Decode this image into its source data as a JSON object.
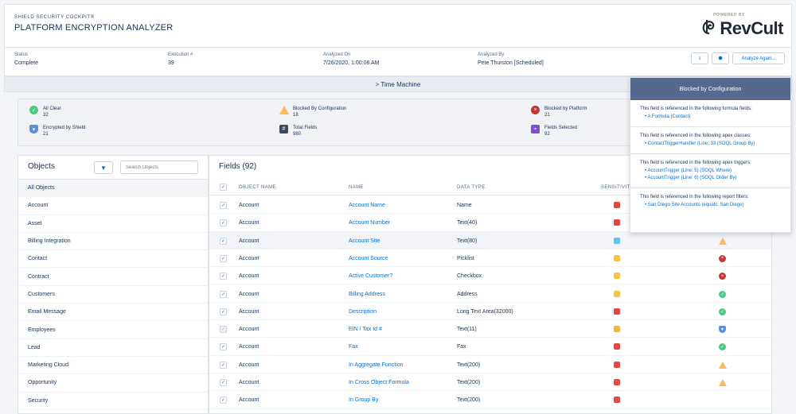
{
  "header": {
    "subtitle": "SHIELD SECURITY COCKPIT®",
    "title": "PLATFORM ENCRYPTION ANALYZER",
    "powered_by": "POWERED BY",
    "logo_text": "RevCult"
  },
  "info": {
    "status_label": "Status",
    "status_value": "Complete",
    "execution_label": "Execution #",
    "execution_value": "39",
    "analyzed_on_label": "Analyzed On",
    "analyzed_on_value": "7/26/2020, 1:00:08 AM",
    "analyzed_by_label": "Analyzed By",
    "analyzed_by_value": "Pete Thurston [Scheduled]",
    "analyze_again_label": "Analyze Again..."
  },
  "time_machine": "> Time Machine",
  "stats": {
    "all_clear_label": "All Clear",
    "all_clear_value": "32",
    "encrypted_label": "Encrypted by Shield",
    "encrypted_value": "21",
    "blocked_config_label": "Blocked By Configuration",
    "blocked_config_value": "18",
    "total_fields_label": "Total Fields",
    "total_fields_value": "980",
    "blocked_platform_label": "Blocked by Platform",
    "blocked_platform_value": "21",
    "fields_selected_label": "Fields Selected",
    "fields_selected_value": "92"
  },
  "objects": {
    "title": "Objects",
    "search_placeholder": "Search Objects",
    "items": [
      "All Objects",
      "Account",
      "Asset",
      "Billing Integration",
      "Contact",
      "Contract",
      "Customers",
      "Email Message",
      "Employees",
      "Lead",
      "Marketing Cloud",
      "Opportunity",
      "Security"
    ]
  },
  "fields": {
    "title": "Fields (92)",
    "columns": {
      "object": "OBJECT NAME",
      "name": "NAME",
      "type": "DATA TYPE",
      "sensitivity": "SENSITIVITY"
    },
    "rows": [
      {
        "object": "Account",
        "name": "Account Name",
        "type": "Name",
        "sens": "#e8473f",
        "status": ""
      },
      {
        "object": "Account",
        "name": "Account Number",
        "type": "Text(40)",
        "sens": "#e8473f",
        "status": ""
      },
      {
        "object": "Account",
        "name": "Account Site",
        "type": "Text(80)",
        "sens": "#5dc5f1",
        "status": "warning"
      },
      {
        "object": "Account",
        "name": "Account Source",
        "type": "Picklist",
        "sens": "#f5c542",
        "status": "error"
      },
      {
        "object": "Account",
        "name": "Active Customer?",
        "type": "Checkbox",
        "sens": "#f5c542",
        "status": "error"
      },
      {
        "object": "Account",
        "name": "Billing Address",
        "type": "Address",
        "sens": "#f5c542",
        "status": "success"
      },
      {
        "object": "Account",
        "name": "Description",
        "type": "Long Text Area(32000)",
        "sens": "#e8473f",
        "status": "success"
      },
      {
        "object": "Account",
        "name": "EIN / Tax Id #",
        "type": "Text(11)",
        "sens": "#f5b342",
        "status": "shield"
      },
      {
        "object": "Account",
        "name": "Fax",
        "type": "Fax",
        "sens": "#e8473f",
        "status": "success"
      },
      {
        "object": "Account",
        "name": "In Aggregate Function",
        "type": "Text(200)",
        "sens": "#e8473f",
        "status": "warning"
      },
      {
        "object": "Account",
        "name": "In Cross Object Formula",
        "type": "Text(200)",
        "sens": "#e8473f",
        "status": "warning"
      },
      {
        "object": "Account",
        "name": "In Group By",
        "type": "Text(200)",
        "sens": "#e8473f",
        "status": ""
      }
    ]
  },
  "popover": {
    "title": "Blocked by Configuration",
    "formula_text": "This field is referenced in the following formula fields:",
    "formula_items": [
      "A Formula (Contact)"
    ],
    "apex_classes_text": "This field is referenced in the following apex classes:",
    "apex_classes_items": [
      "ContactTriggerHandler (Line: 33 (SOQL Group By)"
    ],
    "apex_triggers_text": "This field is referenced in the following apex triggers:",
    "apex_triggers_items": [
      "AccountTrigger (Line: 5) (SOQL Where)",
      "AccountTrigger (Line: 6) (SOQL Order By)"
    ],
    "report_filters_text": "This field is referenced in the following report filters:",
    "report_filters_items": [
      "San Diego Site Accounts (equals: San Diego)"
    ]
  },
  "colors": {
    "brand_blue": "#0070d2",
    "success": "#4bca81",
    "warning": "#ffb75d",
    "error": "#c23934",
    "header_dark": "#54698d"
  }
}
